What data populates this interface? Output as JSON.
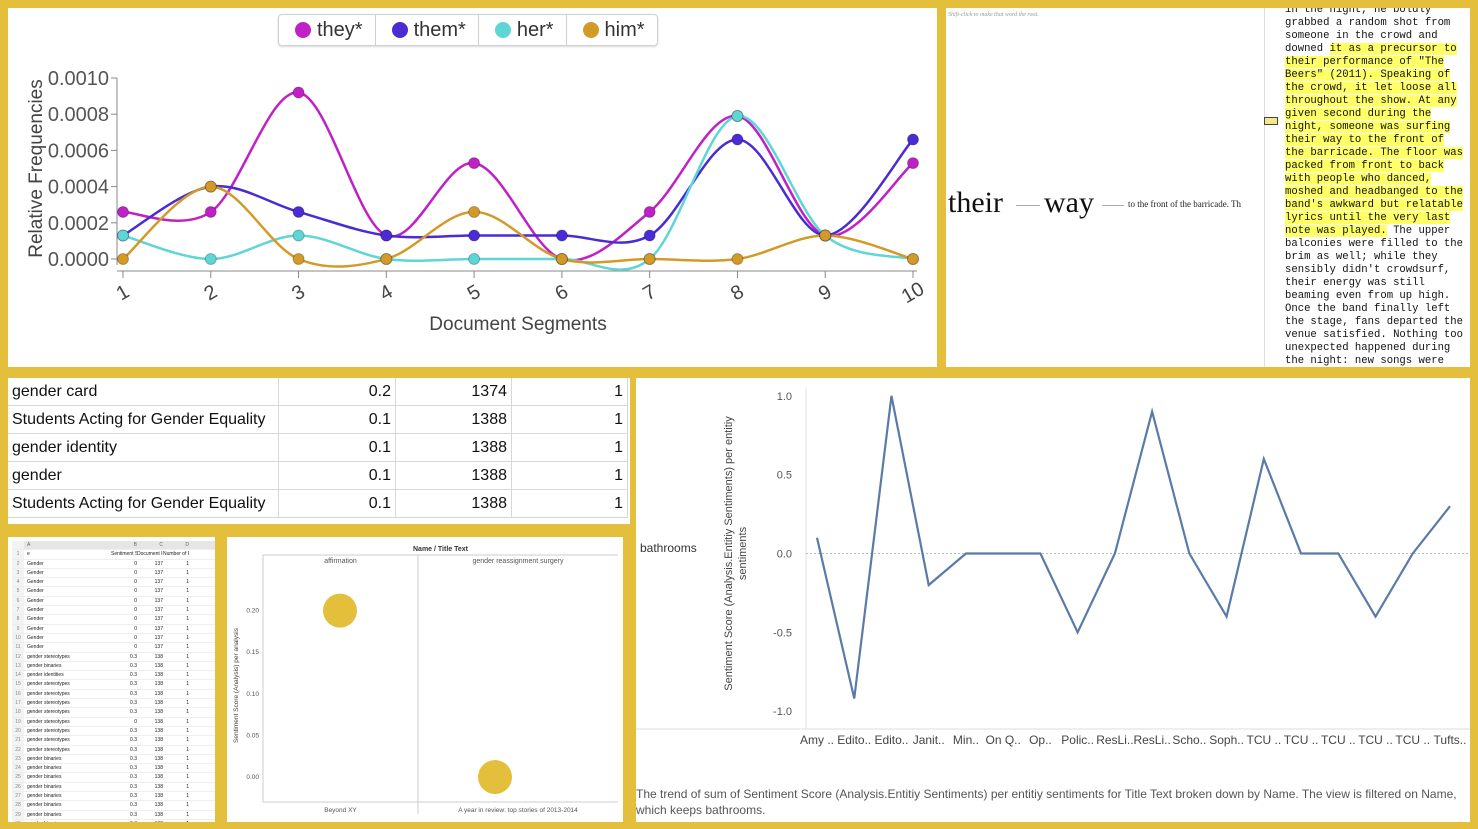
{
  "chart_data": [
    {
      "type": "line",
      "xlabel": "Document Segments",
      "ylabel": "Relative Frequencies",
      "x": [
        1,
        2,
        3,
        4,
        5,
        6,
        7,
        8,
        9,
        10
      ],
      "ylim": [
        0,
        0.001
      ],
      "yticks": [
        "0.0000",
        "0.0002",
        "0.0004",
        "0.0006",
        "0.0008",
        "0.0010"
      ],
      "legend_position": "top-center",
      "series": [
        {
          "name": "they*",
          "color": "#c021c6",
          "values": [
            0.00026,
            0.00026,
            0.00092,
            0.00013,
            0.00053,
            0.0,
            0.00026,
            0.00079,
            0.00013,
            0.00053
          ]
        },
        {
          "name": "them*",
          "color": "#4a2bd4",
          "values": [
            0.00013,
            0.0004,
            0.00026,
            0.00013,
            0.00013,
            0.00013,
            0.00013,
            0.00066,
            0.00013,
            0.00066
          ]
        },
        {
          "name": "her*",
          "color": "#5fd6d6",
          "values": [
            0.00013,
            0.0,
            0.00013,
            0.0,
            0.0,
            0.0,
            0.0,
            0.00079,
            0.00013,
            0.0
          ]
        },
        {
          "name": "him*",
          "color": "#d39a28",
          "values": [
            0.0,
            0.0004,
            0.0,
            0.0,
            0.00026,
            0.0,
            0.0,
            0.0,
            0.00013,
            0.0
          ]
        }
      ]
    },
    {
      "type": "line",
      "ylabel": "Sentiment Score (Analysis.Entitiy Sentiments) per entitiy sentiments",
      "row_label": "bathrooms",
      "categories": [
        "Amy ..",
        "Edito..",
        "Edito..",
        "Janit..",
        "Min..",
        "On Q..",
        "Op..",
        "Polic..",
        "ResLi..",
        "ResLi..",
        "Scho..",
        "Soph..",
        "TCU ..",
        "TCU ..",
        "TCU ..",
        "TCU ..",
        "TCU ..",
        "Tufts.."
      ],
      "values": [
        0.1,
        -0.92,
        1.0,
        -0.2,
        0.0,
        0.0,
        0.0,
        -0.5,
        0.0,
        0.9,
        0.0,
        -0.4,
        0.6,
        0.0,
        0.0,
        -0.4,
        0.0,
        0.3
      ],
      "ylim": [
        -1.05,
        1.05
      ],
      "yticks": [
        "1.0",
        "0.5",
        "0.0",
        "-0.5",
        "-1.0"
      ],
      "color": "#5b7aa8",
      "caption": "The trend of sum of Sentiment Score (Analysis.Entitiy Sentiments) per entitiy sentiments for Title Text broken down by Name. The view is filtered on Name, which keeps bathrooms."
    },
    {
      "type": "scatter",
      "title": "Name / Title Text",
      "ylabel": "Sentiment Score (Analysis) per analysis",
      "ylim": [
        -0.03,
        0.25
      ],
      "yticks": [
        "0.20",
        "0.15",
        "0.10",
        "0.05",
        "0.00"
      ],
      "columns": [
        "affirmation",
        "gender reassignment surgery"
      ],
      "bottom_labels": [
        "Beyond XY",
        "A year in review: top stories of 2013-2014"
      ],
      "color": "#e4bf3c",
      "points": [
        {
          "col": 0,
          "y": 0.2
        },
        {
          "col": 1,
          "y": 0.0
        }
      ]
    }
  ],
  "table": [
    [
      "gender card",
      "0.2",
      "1374",
      "1"
    ],
    [
      "Students Acting for Gender Equality",
      "0.1",
      "1388",
      "1"
    ],
    [
      "gender identity",
      "0.1",
      "1388",
      "1"
    ],
    [
      "gender",
      "0.1",
      "1388",
      "1"
    ],
    [
      "Students Acting for Gender Equality",
      "0.1",
      "1388",
      "1"
    ]
  ],
  "reader": {
    "hint": "Shift-click to make that word the root.",
    "word1": "their",
    "word2": "way",
    "context": "to the front of the barricade. Th",
    "text_plain_1": "in the night, he boldly\ngrabbed a random shot from\nsomeone in the crowd and\ndowned ",
    "text_hl": "it as a precursor to\ntheir performance of \"The\nBeers\" (2011). Speaking of\nthe crowd, it let loose all\nthroughout the show. At any\ngiven second during the\nnight, someone was surfing\ntheir way to the front of\nthe barricade. The floor was\npacked from front to back\nwith people who danced,\nmoshed and headbanged to the\nband's awkward but relatable\nlyrics until the very last\nnote was played.",
    "text_plain_2": " The upper\nbalconies were filled to the\nbrim as well; while they\nsensibly didn't crowdsurf,\ntheir energy was still\nbeaming even from up high.\nOnce the band finally left\nthe stage, fans departed the\nvenue satisfied. Nothing too\nunexpected happened during\nthe night: new songs were"
  },
  "sheet": {
    "headers": [
      "",
      "A",
      "B",
      "C",
      "D"
    ],
    "col_names": [
      "1",
      "e",
      "Sentiment Scor",
      "Document Inde",
      "Number of Rec"
    ],
    "rows": [
      [
        "2",
        "Gender",
        "0",
        "137",
        "1"
      ],
      [
        "3",
        "Gender",
        "0",
        "137",
        "1"
      ],
      [
        "4",
        "Gender",
        "0",
        "137",
        "1"
      ],
      [
        "5",
        "Gender",
        "0",
        "137",
        "1"
      ],
      [
        "6",
        "Gender",
        "0",
        "137",
        "1"
      ],
      [
        "7",
        "Gender",
        "0",
        "137",
        "1"
      ],
      [
        "8",
        "Gender",
        "0",
        "137",
        "1"
      ],
      [
        "9",
        "Gender",
        "0",
        "137",
        "1"
      ],
      [
        "10",
        "Gender",
        "0",
        "137",
        "1"
      ],
      [
        "11",
        "Gender",
        "0",
        "137",
        "1"
      ],
      [
        "12",
        "gender stereotypes",
        "0.3",
        "138",
        "1"
      ],
      [
        "13",
        "gender binaries",
        "0.3",
        "138",
        "1"
      ],
      [
        "14",
        "gender identities",
        "0.3",
        "138",
        "1"
      ],
      [
        "15",
        "gender stereotypes",
        "0.3",
        "138",
        "1"
      ],
      [
        "16",
        "gender stereotypes",
        "0.3",
        "138",
        "1"
      ],
      [
        "17",
        "gender stereotypes",
        "0.3",
        "138",
        "1"
      ],
      [
        "18",
        "gender stereotypes",
        "0.3",
        "138",
        "1"
      ],
      [
        "19",
        "gender stereotypes",
        "0",
        "138",
        "1"
      ],
      [
        "20",
        "gender stereotypes",
        "0.3",
        "138",
        "1"
      ],
      [
        "21",
        "gender stereotypes",
        "0.3",
        "138",
        "1"
      ],
      [
        "22",
        "gender stereotypes",
        "0.3",
        "138",
        "1"
      ],
      [
        "23",
        "gender binaries",
        "0.3",
        "138",
        "1"
      ],
      [
        "24",
        "gender binaries",
        "0.3",
        "138",
        "1"
      ],
      [
        "25",
        "gender binaries",
        "0.3",
        "138",
        "1"
      ],
      [
        "26",
        "gender binaries",
        "0.3",
        "138",
        "1"
      ],
      [
        "27",
        "gender binaries",
        "0.3",
        "138",
        "1"
      ],
      [
        "28",
        "gender binaries",
        "0.3",
        "138",
        "1"
      ],
      [
        "29",
        "gender binaries",
        "0.3",
        "138",
        "1"
      ],
      [
        "30",
        "gender binaries",
        "0.3",
        "138",
        "1"
      ],
      [
        "31",
        "gender identities",
        "0.3",
        "138",
        "1"
      ],
      [
        "32",
        "gender identities",
        "0.3",
        "138",
        "1"
      ],
      [
        "33",
        "gender identities",
        "0.3",
        "138",
        "1"
      ]
    ]
  }
}
